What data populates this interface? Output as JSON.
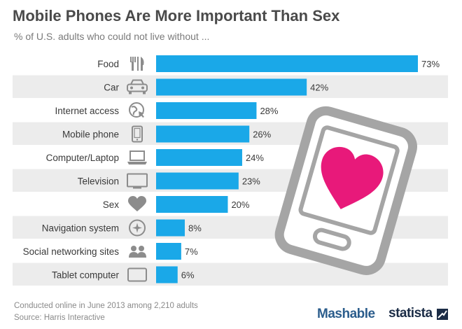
{
  "header": {
    "title": "Mobile Phones Are More Important Than Sex",
    "subtitle": "% of U.S. adults who could not live without ..."
  },
  "footer": {
    "note": "Conducted online in June 2013 among 2,210 adults",
    "source": "Source: Harris Interactive",
    "brand_mashable": "Mashable",
    "brand_statista": "statista"
  },
  "colors": {
    "bar": "#1aa8e8",
    "row_stripe": "#ececec",
    "label": "#3a3a3a",
    "icon": "#8c8c8c",
    "heart": "#e8197a",
    "phone_outline": "#a5a5a5"
  },
  "chart_data": {
    "type": "bar",
    "orientation": "horizontal",
    "categories": [
      "Food",
      "Car",
      "Internet access",
      "Mobile phone",
      "Computer/Laptop",
      "Television",
      "Sex",
      "Navigation system",
      "Social networking sites",
      "Tablet computer"
    ],
    "values": [
      73,
      42,
      28,
      26,
      24,
      23,
      20,
      8,
      7,
      6
    ],
    "value_labels": [
      "73%",
      "42%",
      "28%",
      "26%",
      "24%",
      "23%",
      "20%",
      "8%",
      "7%",
      "6%"
    ],
    "icons": [
      "cutlery-icon",
      "car-icon",
      "globe-cursor-icon",
      "mobile-phone-icon",
      "laptop-icon",
      "television-icon",
      "heart-icon",
      "compass-icon",
      "people-icon",
      "tablet-icon"
    ],
    "unit": "%",
    "xlim": [
      0,
      73
    ],
    "grid": false,
    "legend": false
  }
}
